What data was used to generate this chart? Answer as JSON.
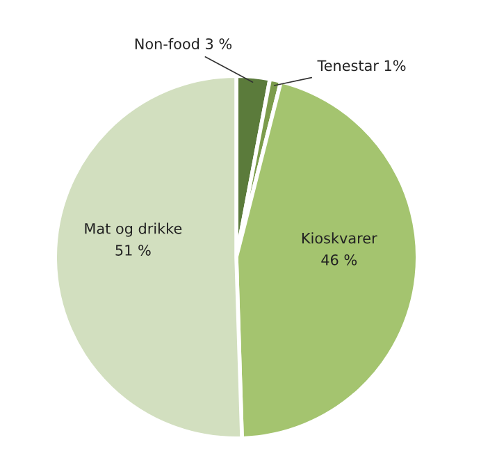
{
  "chart_data": {
    "type": "pie",
    "categories": [
      "Non-food",
      "Tenestar",
      "Kioskvarer",
      "Mat og drikke"
    ],
    "values": [
      3,
      1,
      46,
      51
    ],
    "value_labels": [
      "3 %",
      "1%",
      "46 %",
      "51 %"
    ],
    "colors": [
      "#5b7b3b",
      "#7c9c4c",
      "#a4c46f",
      "#d2dfbf"
    ]
  }
}
